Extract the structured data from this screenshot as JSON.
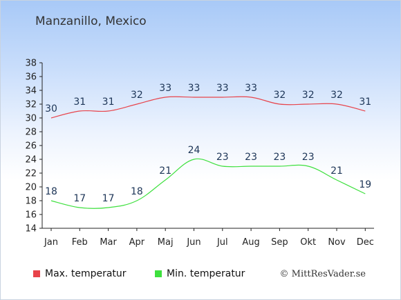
{
  "chart_data": {
    "type": "line",
    "title": "Manzanillo, Mexico",
    "categories": [
      "Jan",
      "Feb",
      "Mar",
      "Apr",
      "Maj",
      "Jun",
      "Jul",
      "Aug",
      "Sep",
      "Okt",
      "Nov",
      "Dec"
    ],
    "series": [
      {
        "name": "Max. temperatur",
        "color": "#e8434a",
        "values": [
          30,
          31,
          31,
          32,
          33,
          33,
          33,
          33,
          32,
          32,
          32,
          31
        ]
      },
      {
        "name": "Min. temperatur",
        "color": "#3ee03e",
        "values": [
          18,
          17,
          17,
          18,
          21,
          24,
          23,
          23,
          23,
          23,
          21,
          19
        ]
      }
    ],
    "ylim": [
      14,
      38
    ],
    "yticks": [
      14,
      16,
      18,
      20,
      22,
      24,
      26,
      28,
      30,
      32,
      34,
      36,
      38
    ],
    "xlabel": "",
    "ylabel": "",
    "legend_position": "bottom"
  },
  "credit": "© MittResVader.se"
}
